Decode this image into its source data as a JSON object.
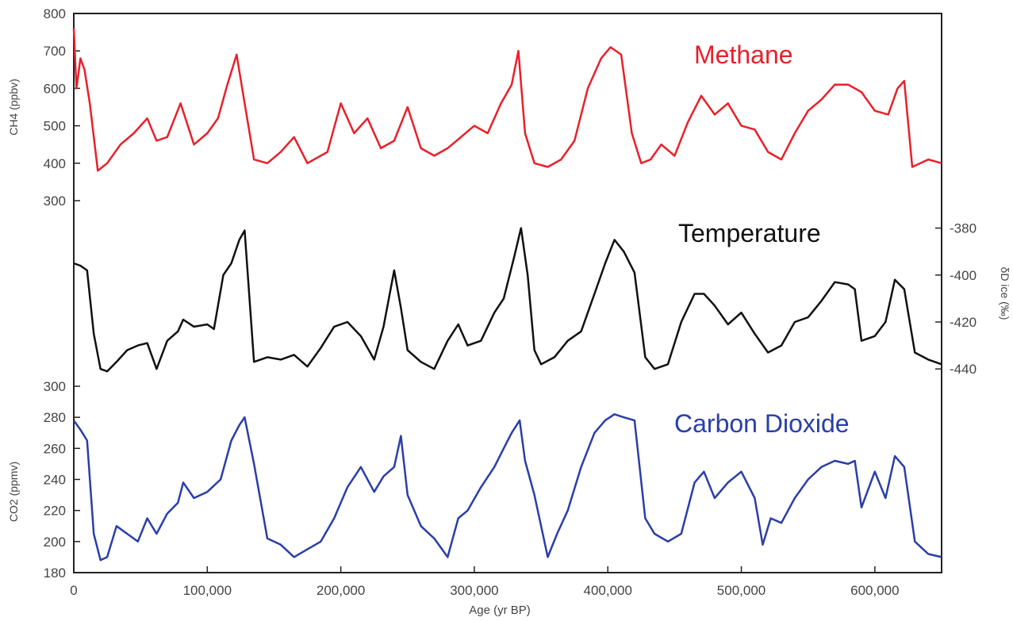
{
  "chart_data": {
    "type": "line",
    "x_axis": {
      "label": "Age (yr BP)",
      "range": [
        0,
        650000
      ],
      "ticks": [
        0,
        100000,
        200000,
        300000,
        400000,
        500000,
        600000
      ],
      "tick_labels": [
        "0",
        "100,000",
        "200,000",
        "300,000",
        "400,000",
        "500,000",
        "600,000"
      ]
    },
    "panels": [
      {
        "name": "Methane",
        "ylabel": "CH4 (ppbv)",
        "ylim": [
          300,
          800
        ],
        "y_ticks": [
          300,
          400,
          500,
          600,
          700,
          800
        ],
        "axis_side": "left",
        "color": "#e8202a",
        "x": [
          0,
          2000,
          5000,
          8000,
          12000,
          18000,
          25000,
          35000,
          45000,
          55000,
          62000,
          70000,
          80000,
          90000,
          100000,
          108000,
          115000,
          122000,
          128000,
          135000,
          145000,
          155000,
          165000,
          175000,
          190000,
          200000,
          210000,
          220000,
          230000,
          240000,
          250000,
          260000,
          270000,
          280000,
          290000,
          300000,
          310000,
          320000,
          328000,
          333000,
          338000,
          345000,
          355000,
          365000,
          375000,
          385000,
          395000,
          402000,
          410000,
          418000,
          425000,
          432000,
          440000,
          450000,
          460000,
          470000,
          480000,
          490000,
          500000,
          510000,
          520000,
          530000,
          540000,
          550000,
          560000,
          570000,
          580000,
          590000,
          600000,
          610000,
          617000,
          622000,
          628000,
          640000,
          650000
        ],
        "values": [
          760,
          600,
          680,
          650,
          560,
          380,
          400,
          450,
          480,
          520,
          460,
          470,
          560,
          450,
          480,
          520,
          610,
          690,
          560,
          410,
          400,
          430,
          470,
          400,
          430,
          560,
          480,
          520,
          440,
          460,
          550,
          440,
          420,
          440,
          470,
          500,
          480,
          560,
          610,
          700,
          480,
          400,
          390,
          410,
          460,
          600,
          680,
          710,
          690,
          480,
          400,
          410,
          450,
          420,
          510,
          580,
          530,
          560,
          500,
          490,
          430,
          410,
          480,
          540,
          570,
          610,
          610,
          590,
          540,
          530,
          600,
          620,
          390,
          410,
          400
        ]
      },
      {
        "name": "Temperature",
        "ylabel": "δD ice (‰)",
        "ylim": [
          -445,
          -370
        ],
        "y_ticks": [
          -380,
          -400,
          -420,
          -440
        ],
        "axis_side": "right",
        "color": "#111111",
        "x": [
          0,
          5000,
          10000,
          15000,
          20000,
          25000,
          32000,
          40000,
          48000,
          55000,
          62000,
          70000,
          78000,
          82000,
          90000,
          100000,
          105000,
          112000,
          118000,
          124000,
          128000,
          135000,
          145000,
          155000,
          165000,
          175000,
          185000,
          195000,
          205000,
          215000,
          225000,
          232000,
          240000,
          245000,
          250000,
          260000,
          270000,
          280000,
          288000,
          295000,
          305000,
          315000,
          322000,
          330000,
          335000,
          340000,
          345000,
          350000,
          360000,
          370000,
          380000,
          390000,
          398000,
          405000,
          412000,
          420000,
          428000,
          435000,
          445000,
          455000,
          465000,
          472000,
          480000,
          490000,
          500000,
          510000,
          520000,
          530000,
          540000,
          550000,
          560000,
          570000,
          580000,
          585000,
          590000,
          600000,
          608000,
          615000,
          622000,
          630000,
          640000,
          650000
        ],
        "values": [
          -395,
          -396,
          -398,
          -425,
          -440,
          -441,
          -437,
          -432,
          -430,
          -429,
          -440,
          -428,
          -424,
          -419,
          -422,
          -421,
          -423,
          -400,
          -395,
          -385,
          -381,
          -437,
          -435,
          -436,
          -434,
          -439,
          -431,
          -422,
          -420,
          -426,
          -436,
          -422,
          -398,
          -414,
          -432,
          -437,
          -440,
          -428,
          -421,
          -430,
          -428,
          -416,
          -410,
          -392,
          -380,
          -400,
          -432,
          -438,
          -435,
          -428,
          -424,
          -408,
          -395,
          -385,
          -390,
          -399,
          -435,
          -440,
          -438,
          -420,
          -408,
          -408,
          -413,
          -421,
          -416,
          -425,
          -433,
          -430,
          -420,
          -418,
          -411,
          -403,
          -404,
          -406,
          -428,
          -426,
          -420,
          -402,
          -406,
          -433,
          -436,
          -438
        ]
      },
      {
        "name": "Carbon Dioxide",
        "ylabel": "CO2 (ppmv)",
        "ylim": [
          180,
          300
        ],
        "y_ticks": [
          180,
          200,
          220,
          240,
          260,
          280,
          300
        ],
        "axis_side": "left",
        "color": "#2a3ea8",
        "x": [
          0,
          5000,
          10000,
          15000,
          20000,
          25000,
          32000,
          40000,
          48000,
          55000,
          62000,
          70000,
          78000,
          82000,
          90000,
          100000,
          110000,
          118000,
          124000,
          128000,
          135000,
          145000,
          155000,
          165000,
          175000,
          185000,
          195000,
          205000,
          215000,
          225000,
          232000,
          240000,
          245000,
          250000,
          260000,
          270000,
          280000,
          288000,
          295000,
          305000,
          315000,
          322000,
          328000,
          334000,
          338000,
          345000,
          355000,
          362000,
          370000,
          380000,
          390000,
          398000,
          405000,
          412000,
          420000,
          428000,
          435000,
          445000,
          455000,
          465000,
          472000,
          480000,
          490000,
          500000,
          510000,
          516000,
          522000,
          530000,
          540000,
          550000,
          560000,
          570000,
          580000,
          585000,
          590000,
          600000,
          608000,
          615000,
          622000,
          630000,
          640000,
          650000
        ],
        "values": [
          278,
          272,
          265,
          205,
          188,
          190,
          210,
          205,
          200,
          215,
          205,
          218,
          225,
          238,
          228,
          232,
          240,
          265,
          275,
          280,
          250,
          202,
          198,
          190,
          195,
          200,
          215,
          235,
          248,
          232,
          242,
          248,
          268,
          230,
          210,
          202,
          190,
          215,
          220,
          235,
          248,
          260,
          270,
          278,
          252,
          230,
          190,
          205,
          220,
          248,
          270,
          278,
          282,
          280,
          278,
          215,
          205,
          200,
          205,
          238,
          245,
          228,
          238,
          245,
          228,
          198,
          215,
          212,
          228,
          240,
          248,
          252,
          250,
          252,
          222,
          245,
          228,
          255,
          248,
          200,
          192,
          190
        ]
      }
    ]
  }
}
